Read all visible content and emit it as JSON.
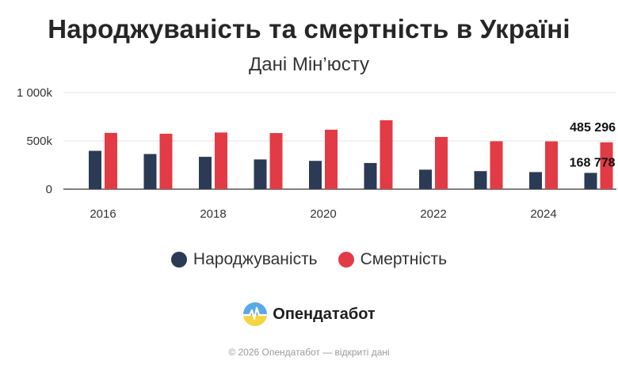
{
  "header": {
    "title": "Народжуваність та смертність в Україні",
    "subtitle": "Дані Мін’юсту"
  },
  "chart_data": {
    "type": "bar",
    "x": [
      2016,
      2017,
      2018,
      2019,
      2020,
      2021,
      2022,
      2023,
      2024,
      2025
    ],
    "x_tick_labels": [
      "2016",
      "2018",
      "2020",
      "2022",
      "2024"
    ],
    "x_tick_values": [
      2016,
      2018,
      2020,
      2022,
      2024
    ],
    "y_tick_labels": [
      "0",
      "500k",
      "1 000k"
    ],
    "y_tick_values": [
      0,
      500000,
      1000000
    ],
    "ylim": [
      0,
      1000000
    ],
    "grid": true,
    "series": [
      {
        "name": "Народжуваність",
        "color": "#2b3a55",
        "values": [
          397000,
          364000,
          335000,
          308000,
          293000,
          271000,
          202000,
          187000,
          177000,
          168778
        ]
      },
      {
        "name": "Смертність",
        "color": "#e23b45",
        "values": [
          583000,
          574000,
          587000,
          581000,
          616000,
          714000,
          541000,
          496000,
          495000,
          485296
        ]
      }
    ],
    "data_labels": [
      {
        "series": 0,
        "index": 9,
        "text": "168 778"
      },
      {
        "series": 1,
        "index": 9,
        "text": "485 296"
      }
    ]
  },
  "legend": {
    "items": [
      {
        "label": "Народжуваність",
        "color": "#2b3a55"
      },
      {
        "label": "Смертність",
        "color": "#e23b45"
      }
    ]
  },
  "brand": {
    "name": "Опендатабот",
    "icon": "opendatabot-logo-icon"
  },
  "footer": {
    "text": "© 2026 Опендатабот — відкриті дані"
  }
}
